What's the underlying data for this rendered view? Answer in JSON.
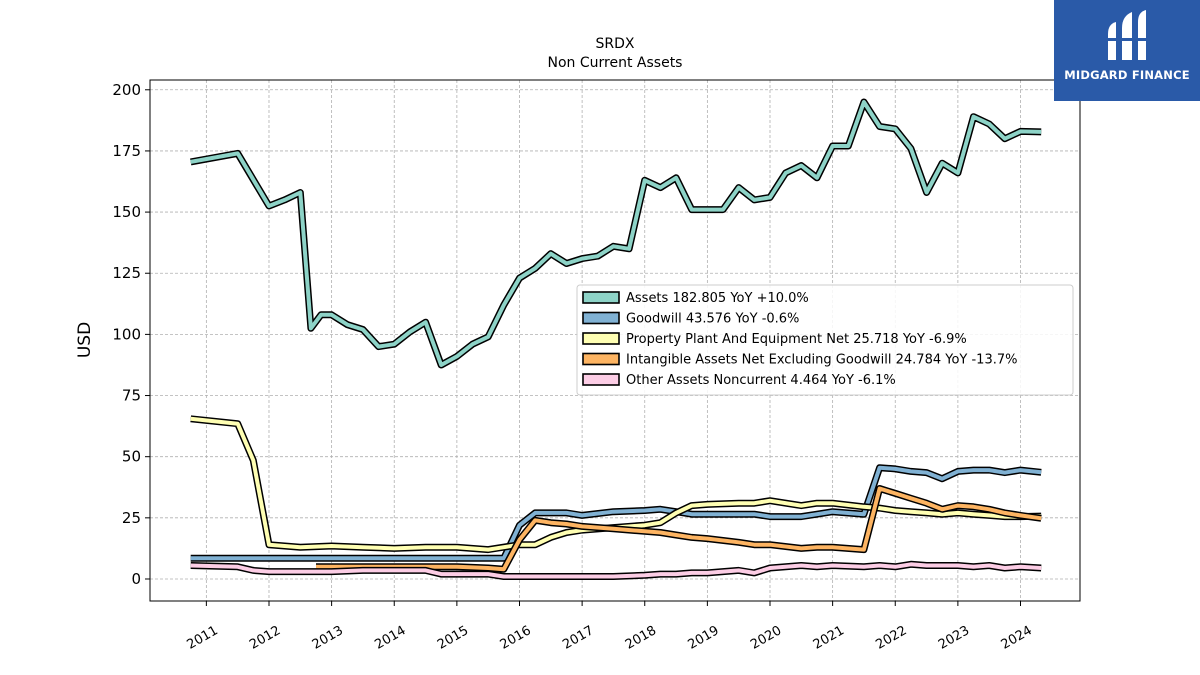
{
  "brand": {
    "name": "MIDGARD FINANCE",
    "color": "#2a5aa8"
  },
  "chart_data": {
    "type": "line",
    "title": "SRDX",
    "subtitle": "Non Current  Assets",
    "ylabel": "USD",
    "xlabel": "",
    "ylim": [
      -9,
      204
    ],
    "xlim": [
      2010.1,
      2024.95
    ],
    "yticks": [
      0,
      25,
      50,
      75,
      100,
      125,
      150,
      175,
      200
    ],
    "xticks": [
      "2011",
      "2012",
      "2013",
      "2014",
      "2015",
      "2016",
      "2017",
      "2018",
      "2019",
      "2020",
      "2021",
      "2022",
      "2023",
      "2024"
    ],
    "grid": true,
    "legend_position": "center-right",
    "series": [
      {
        "name": "Assets",
        "legend": "Assets  182.805 YoY +10.0%",
        "color": "#8dd3c7",
        "x": [
          2010.75,
          2011.5,
          2012.0,
          2012.25,
          2012.5,
          2012.67,
          2012.83,
          2013.0,
          2013.25,
          2013.5,
          2013.75,
          2014.0,
          2014.25,
          2014.5,
          2014.75,
          2015.0,
          2015.25,
          2015.5,
          2015.75,
          2016.0,
          2016.25,
          2016.5,
          2016.75,
          2017.0,
          2017.25,
          2017.5,
          2017.75,
          2018.0,
          2018.25,
          2018.5,
          2018.75,
          2019.0,
          2019.25,
          2019.5,
          2019.75,
          2020.0,
          2020.25,
          2020.5,
          2020.75,
          2021.0,
          2021.25,
          2021.5,
          2021.75,
          2022.0,
          2022.25,
          2022.5,
          2022.75,
          2023.0,
          2023.25,
          2023.5,
          2023.75,
          2024.0,
          2024.33
        ],
        "y": [
          170.5,
          174.0,
          152.5,
          155.0,
          158.0,
          102.5,
          108.0,
          108.0,
          104.0,
          102.0,
          95.0,
          96.0,
          101.0,
          105.0,
          87.5,
          91.0,
          96.0,
          99.0,
          112.0,
          123.0,
          127.0,
          133.0,
          129.0,
          131.0,
          132.0,
          136.0,
          135.0,
          163.0,
          160.0,
          164.0,
          151.0,
          151.0,
          151.0,
          160.0,
          155.0,
          156.0,
          166.0,
          169.0,
          164.0,
          177.0,
          177.0,
          195.0,
          185.0,
          184.0,
          176.0,
          158.0,
          170.0,
          166.0,
          189.0,
          186.0,
          180.0,
          183.0,
          182.8
        ]
      },
      {
        "name": "Goodwill",
        "legend": "Goodwill  43.576 YoY -0.6%",
        "color": "#80b1d3",
        "x": [
          2010.75,
          2011.5,
          2012.0,
          2012.5,
          2013.0,
          2013.5,
          2014.0,
          2014.5,
          2015.0,
          2015.5,
          2015.75,
          2016.0,
          2016.25,
          2016.5,
          2016.75,
          2017.0,
          2017.5,
          2018.0,
          2018.25,
          2018.5,
          2018.75,
          2019.0,
          2019.5,
          2019.75,
          2020.0,
          2020.5,
          2020.75,
          2021.0,
          2021.5,
          2021.75,
          2022.0,
          2022.25,
          2022.5,
          2022.75,
          2023.0,
          2023.25,
          2023.5,
          2023.75,
          2024.0,
          2024.33
        ],
        "y": [
          8.5,
          8.5,
          8.5,
          8.5,
          8.5,
          8.5,
          8.5,
          8.5,
          8.5,
          8.5,
          8.5,
          22.0,
          27.0,
          27.0,
          27.0,
          26.0,
          27.5,
          28.0,
          28.5,
          27.5,
          26.5,
          26.5,
          26.5,
          26.5,
          25.5,
          25.5,
          26.5,
          27.5,
          26.5,
          45.5,
          45.0,
          44.0,
          43.5,
          41.0,
          44.0,
          44.5,
          44.5,
          43.5,
          44.5,
          43.6
        ]
      },
      {
        "name": "Property Plant And Equipment Net",
        "legend": "Property Plant And Equipment Net  25.718 YoY -6.9%",
        "color": "#ffffb3",
        "x": [
          2010.75,
          2011.5,
          2011.75,
          2012.0,
          2012.5,
          2013.0,
          2013.5,
          2014.0,
          2014.5,
          2015.0,
          2015.5,
          2016.0,
          2016.25,
          2016.5,
          2016.75,
          2017.0,
          2017.5,
          2018.0,
          2018.25,
          2018.5,
          2018.75,
          2019.0,
          2019.5,
          2019.75,
          2020.0,
          2020.5,
          2020.75,
          2021.0,
          2021.5,
          2021.75,
          2022.0,
          2022.25,
          2022.5,
          2022.75,
          2023.0,
          2023.25,
          2023.5,
          2023.75,
          2024.0,
          2024.33
        ],
        "y": [
          65.5,
          63.5,
          48.5,
          14.0,
          13.0,
          13.5,
          13.0,
          12.5,
          13.0,
          13.0,
          12.0,
          14.0,
          14.0,
          17.0,
          19.0,
          20.0,
          21.0,
          22.0,
          23.0,
          27.0,
          30.0,
          30.5,
          31.0,
          31.0,
          32.0,
          30.0,
          31.0,
          31.0,
          29.5,
          29.0,
          28.0,
          27.5,
          27.0,
          26.5,
          27.0,
          26.5,
          26.0,
          25.5,
          25.5,
          25.7
        ]
      },
      {
        "name": "Intangible Assets Net Excluding Goodwill",
        "legend": "Intangible Assets Net Excluding Goodwill  24.784 YoY -13.7%",
        "color": "#fdb462",
        "x": [
          2012.75,
          2013.0,
          2013.5,
          2014.0,
          2014.5,
          2015.0,
          2015.5,
          2015.75,
          2016.0,
          2016.25,
          2016.5,
          2016.75,
          2017.0,
          2017.5,
          2018.0,
          2018.25,
          2018.5,
          2018.75,
          2019.0,
          2019.5,
          2019.75,
          2020.0,
          2020.5,
          2020.75,
          2021.0,
          2021.5,
          2021.75,
          2022.0,
          2022.25,
          2022.5,
          2022.75,
          2023.0,
          2023.25,
          2023.5,
          2023.75,
          2024.0,
          2024.33
        ],
        "y": [
          5.0,
          5.0,
          5.0,
          5.0,
          5.0,
          5.0,
          4.5,
          4.0,
          16.0,
          24.0,
          23.0,
          22.5,
          21.5,
          20.5,
          19.5,
          19.0,
          18.0,
          17.0,
          16.5,
          15.0,
          14.0,
          14.0,
          12.5,
          13.0,
          13.0,
          12.0,
          37.0,
          35.0,
          33.0,
          31.0,
          28.5,
          30.0,
          29.5,
          28.5,
          27.0,
          26.0,
          24.8
        ]
      },
      {
        "name": "Other Assets Noncurrent",
        "legend": "Other Assets Noncurrent  4.464 YoY -6.1%",
        "color": "#fccde5",
        "x": [
          2010.75,
          2011.5,
          2011.75,
          2012.0,
          2012.5,
          2013.0,
          2013.5,
          2014.0,
          2014.5,
          2014.75,
          2015.0,
          2015.5,
          2015.75,
          2016.0,
          2016.5,
          2017.0,
          2017.5,
          2018.0,
          2018.25,
          2018.5,
          2018.75,
          2019.0,
          2019.25,
          2019.5,
          2019.75,
          2020.0,
          2020.25,
          2020.5,
          2020.75,
          2021.0,
          2021.5,
          2021.75,
          2022.0,
          2022.25,
          2022.5,
          2022.75,
          2023.0,
          2023.25,
          2023.5,
          2023.75,
          2024.0,
          2024.33
        ],
        "y": [
          5.5,
          5.0,
          3.5,
          3.0,
          3.0,
          3.0,
          3.5,
          3.5,
          3.5,
          2.0,
          2.0,
          2.0,
          1.0,
          1.0,
          1.0,
          1.0,
          1.0,
          1.5,
          2.0,
          2.0,
          2.5,
          2.5,
          3.0,
          3.5,
          2.5,
          4.5,
          5.0,
          5.5,
          5.0,
          5.5,
          5.0,
          5.5,
          5.0,
          6.0,
          5.5,
          5.5,
          5.5,
          5.0,
          5.5,
          4.5,
          5.0,
          4.5
        ]
      }
    ]
  }
}
